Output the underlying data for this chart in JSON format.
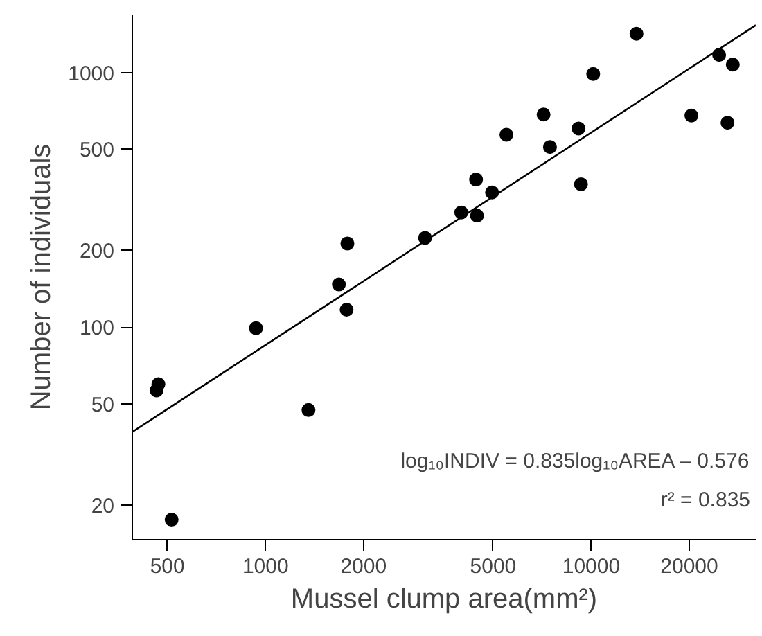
{
  "chart_data": {
    "type": "scatter",
    "xlabel": "Mussel clump area(mm²)",
    "ylabel": "Number of individuals",
    "log": "xy",
    "grid": false,
    "marker": "circle",
    "xlim": [
      390,
      32000
    ],
    "ylim": [
      14.6,
      1690
    ],
    "xticks": [
      500,
      1000,
      2000,
      5000,
      10000,
      20000
    ],
    "yticks": [
      20,
      50,
      100,
      200,
      500,
      1000
    ],
    "series": [
      {
        "color": "#000000",
        "x": [
          13770,
          10140,
          24700,
          27200,
          20300,
          26200,
          7140,
          5490,
          9140,
          7470,
          9300,
          4430,
          4960,
          3990,
          4460,
          3090,
          1784,
          1680,
          1774,
          935,
          469,
          463,
          1355,
          515
        ],
        "values": [
          1420,
          987,
          1173,
          1075,
          678,
          635,
          684,
          570,
          603,
          510,
          364,
          380,
          338,
          282,
          274,
          224,
          213,
          147,
          117,
          99,
          59.6,
          56.4,
          47.2,
          17.5
        ]
      },
      {
        "type": "line",
        "color": "#000000",
        "marker": "none",
        "x": [
          390,
          32000
        ],
        "values": [
          38.7,
          1535
        ]
      }
    ],
    "annotations": [
      "log₁₀INDIV = 0.835log₁₀AREA – 0.576",
      "r² = 0.835"
    ]
  }
}
